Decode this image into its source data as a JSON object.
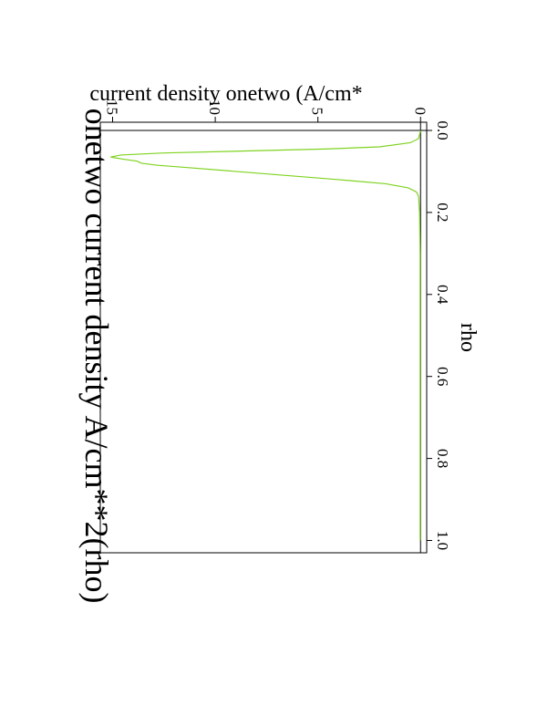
{
  "chart_data": {
    "type": "line",
    "orientation": "rotated-90-clockwise",
    "title": "onetwo current density A/cm**2(rho)",
    "xlabel": "rho",
    "ylabel": "current density onetwo  (A/cm*",
    "xlim": [
      -0.02,
      1.03
    ],
    "ylim": [
      -0.3,
      15.6
    ],
    "x_ticks": [
      "0.0",
      "0.2",
      "0.4",
      "0.6",
      "0.8",
      "1.0"
    ],
    "x_tick_values": [
      0.0,
      0.2,
      0.4,
      0.6,
      0.8,
      1.0
    ],
    "y_ticks": [
      "0",
      "5",
      "10",
      "15"
    ],
    "y_tick_values": [
      0,
      5,
      10,
      15
    ],
    "reference_lines": [
      {
        "axis": "x",
        "value": 0.0
      },
      {
        "axis": "y",
        "value": 0.0
      }
    ],
    "series": [
      {
        "color": "#7fd321",
        "x": [
          0.0,
          0.02,
          0.03,
          0.04,
          0.045,
          0.05,
          0.055,
          0.06,
          0.065,
          0.07,
          0.075,
          0.08,
          0.085,
          0.09,
          0.1,
          0.11,
          0.12,
          0.13,
          0.14,
          0.15,
          0.16,
          0.2,
          0.3,
          0.4,
          0.5,
          0.6,
          0.7,
          0.8,
          0.9,
          1.0
        ],
        "y": [
          0.0,
          0.1,
          0.5,
          2.0,
          4.5,
          8.5,
          12.5,
          14.6,
          15.1,
          14.5,
          13.8,
          13.6,
          12.8,
          11.5,
          9.0,
          6.5,
          4.0,
          1.7,
          0.6,
          0.2,
          0.1,
          0.05,
          0.02,
          0.02,
          0.02,
          0.02,
          0.02,
          0.02,
          0.02,
          0.02
        ]
      }
    ]
  }
}
